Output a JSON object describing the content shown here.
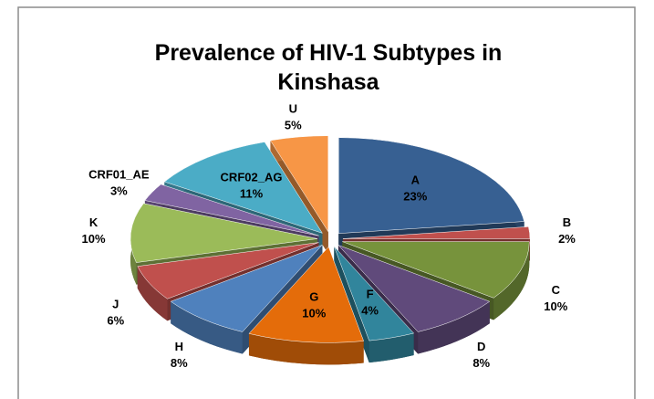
{
  "chart_data": {
    "type": "pie",
    "title": "Prevalence of HIV-1 Subtypes in Kinshasa",
    "categories": [
      "A",
      "B",
      "C",
      "D",
      "F",
      "G",
      "H",
      "J",
      "K",
      "CRF01_AE",
      "CRF02_AG",
      "U"
    ],
    "values": [
      23,
      2,
      10,
      8,
      4,
      10,
      8,
      6,
      10,
      3,
      11,
      5
    ],
    "value_labels": [
      "23%",
      "2%",
      "10%",
      "8%",
      "4%",
      "10%",
      "8%",
      "6%",
      "10%",
      "3%",
      "11%",
      "5%"
    ],
    "colors": [
      "#376092",
      "#c0504d",
      "#77933c",
      "#604a7b",
      "#31859c",
      "#e46c0a",
      "#4f81bd",
      "#c0504d",
      "#9bbb59",
      "#8064a2",
      "#4bacc6",
      "#f79646"
    ]
  }
}
